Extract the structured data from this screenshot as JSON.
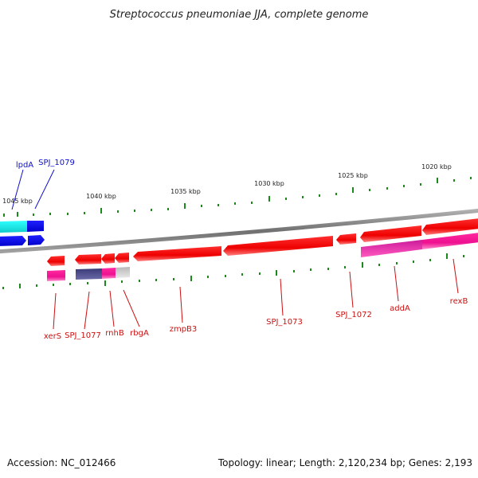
{
  "title": "Streptococcus pneumoniae JJA, complete genome",
  "accession": "Accession: NC_012466",
  "summary": "Topology: linear; Length: 2,120,234 bp; Genes: 2,193",
  "colors": {
    "backbone": "#8a8a8a",
    "tick": "#1a8a1a",
    "forward_label": "#1010cc",
    "reverse_label": "#cc1010",
    "cds_red": "#ff1a1a",
    "gene_magenta": "#ff1aa8",
    "navy": "#4a4a8a",
    "gray": "#c8c8c8",
    "blue": "#1010ff",
    "cyan": "#1ae6e6"
  },
  "scale_labels": [
    "1045 kbp",
    "1040 kbp",
    "1035 kbp",
    "1030 kbp",
    "1025 kbp",
    "1020 kbp"
  ],
  "forward_labels": [
    "lpdA",
    "SPJ_1079"
  ],
  "reverse_labels": [
    "xerS",
    "SPJ_1077",
    "rnhB",
    "rbgA",
    "zmpB3",
    "SPJ_1073",
    "SPJ_1072",
    "addA",
    "rexB"
  ]
}
